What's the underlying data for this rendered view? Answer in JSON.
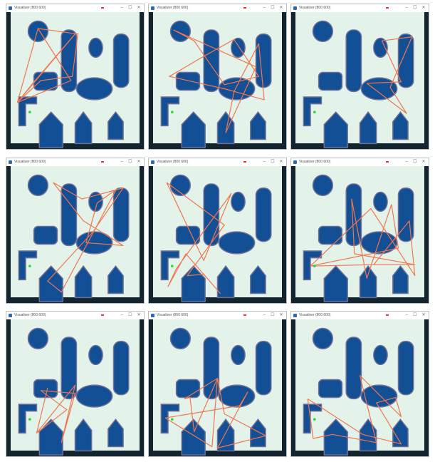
{
  "window": {
    "title": "Visualizer (800 600)",
    "minimize": "–",
    "maximize": "☐",
    "close": "✕"
  },
  "colors": {
    "floor": "#e3f3ea",
    "wall": "#13242f",
    "obstacle": "#134f95",
    "outline": "#6e6f97",
    "path": "#f0764f",
    "start": "#22dd33"
  },
  "panels": [
    {
      "id": 1,
      "path": [
        [
          0.23,
          0.12
        ],
        [
          0.08,
          0.66
        ],
        [
          0.25,
          0.5
        ],
        [
          0.48,
          0.47
        ],
        [
          0.52,
          0.16
        ],
        [
          0.23,
          0.12
        ],
        [
          0.47,
          0.5
        ],
        [
          0.08,
          0.66
        ],
        [
          0.5,
          0.16
        ],
        [
          0.2,
          0.51
        ],
        [
          0.08,
          0.66
        ]
      ]
    },
    {
      "id": 2,
      "path": [
        [
          0.18,
          0.13
        ],
        [
          0.33,
          0.21
        ],
        [
          0.55,
          0.53
        ],
        [
          0.8,
          0.47
        ],
        [
          0.62,
          0.2
        ],
        [
          0.37,
          0.34
        ],
        [
          0.15,
          0.47
        ],
        [
          0.55,
          0.56
        ],
        [
          0.84,
          0.64
        ],
        [
          0.8,
          0.23
        ],
        [
          0.62,
          0.58
        ],
        [
          0.56,
          0.88
        ],
        [
          0.78,
          0.4
        ],
        [
          0.18,
          0.13
        ]
      ]
    },
    {
      "id": 3,
      "path": [
        [
          0.55,
          0.52
        ],
        [
          0.8,
          0.51
        ],
        [
          0.66,
          0.21
        ],
        [
          0.88,
          0.18
        ],
        [
          0.72,
          0.55
        ],
        [
          0.84,
          0.74
        ],
        [
          0.55,
          0.52
        ]
      ]
    },
    {
      "id": 4,
      "path": [
        [
          0.34,
          0.12
        ],
        [
          0.55,
          0.24
        ],
        [
          0.85,
          0.16
        ],
        [
          0.63,
          0.48
        ],
        [
          0.3,
          0.84
        ],
        [
          0.4,
          0.92
        ],
        [
          0.8,
          0.17
        ],
        [
          0.66,
          0.27
        ],
        [
          0.58,
          0.56
        ],
        [
          0.85,
          0.58
        ],
        [
          0.56,
          0.4
        ],
        [
          0.34,
          0.12
        ]
      ]
    },
    {
      "id": 5,
      "path": [
        [
          0.13,
          0.12
        ],
        [
          0.4,
          0.69
        ],
        [
          0.6,
          0.2
        ],
        [
          0.2,
          0.75
        ],
        [
          0.14,
          0.88
        ],
        [
          0.27,
          0.64
        ],
        [
          0.52,
          0.93
        ],
        [
          0.4,
          0.79
        ],
        [
          0.28,
          0.8
        ],
        [
          0.55,
          0.43
        ],
        [
          0.13,
          0.12
        ]
      ]
    },
    {
      "id": 6,
      "path": [
        [
          0.14,
          0.73
        ],
        [
          0.78,
          0.6
        ],
        [
          0.73,
          0.28
        ],
        [
          0.55,
          0.82
        ],
        [
          0.44,
          0.24
        ],
        [
          0.46,
          0.64
        ],
        [
          0.9,
          0.72
        ],
        [
          0.6,
          0.72
        ],
        [
          0.14,
          0.73
        ],
        [
          0.58,
          0.31
        ],
        [
          0.9,
          0.8
        ],
        [
          0.86,
          0.4
        ],
        [
          0.6,
          0.72
        ]
      ]
    },
    {
      "id": 7,
      "path": [
        [
          0.3,
          0.5
        ],
        [
          0.22,
          0.83
        ],
        [
          0.44,
          0.66
        ],
        [
          0.25,
          0.52
        ],
        [
          0.5,
          0.54
        ],
        [
          0.4,
          0.9
        ],
        [
          0.5,
          0.48
        ],
        [
          0.22,
          0.83
        ]
      ]
    },
    {
      "id": 8,
      "path": [
        [
          0.12,
          0.72
        ],
        [
          0.66,
          0.63
        ],
        [
          0.72,
          0.53
        ],
        [
          0.5,
          0.94
        ],
        [
          0.85,
          0.85
        ],
        [
          0.55,
          0.69
        ],
        [
          0.5,
          0.43
        ],
        [
          0.33,
          0.82
        ],
        [
          0.3,
          0.57
        ],
        [
          0.26,
          0.58
        ],
        [
          0.5,
          0.43
        ],
        [
          0.46,
          0.93
        ],
        [
          0.12,
          0.72
        ]
      ]
    },
    {
      "id": 9,
      "path": [
        [
          0.12,
          0.58
        ],
        [
          0.52,
          0.84
        ],
        [
          0.8,
          0.91
        ],
        [
          0.62,
          0.61
        ],
        [
          0.76,
          0.57
        ],
        [
          0.8,
          0.71
        ],
        [
          0.5,
          0.41
        ],
        [
          0.62,
          0.9
        ],
        [
          0.3,
          0.84
        ],
        [
          0.16,
          0.87
        ],
        [
          0.12,
          0.58
        ]
      ]
    }
  ]
}
